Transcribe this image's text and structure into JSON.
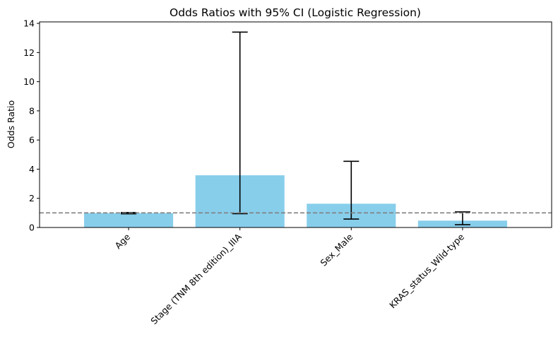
{
  "chart_data": {
    "type": "bar",
    "title": "Odds Ratios with 95% CI (Logistic Regression)",
    "xlabel": "",
    "ylabel": "Odds Ratio",
    "categories": [
      "Age",
      "Stage (TNM 8th edition)_IIIA",
      "Sex_Male",
      "KRAS_status_Wild-type"
    ],
    "values": [
      0.99,
      3.58,
      1.63,
      0.47
    ],
    "ci_lower": [
      0.94,
      0.95,
      0.58,
      0.19
    ],
    "ci_upper": [
      1.03,
      13.4,
      4.54,
      1.07
    ],
    "reference_line": 1.0,
    "ylim": [
      0,
      14.1
    ],
    "yticks": [
      "0",
      "2",
      "4",
      "6",
      "8",
      "10",
      "12",
      "14"
    ],
    "bar_color": "#87ceeb",
    "error_color": "#000000",
    "reference_line_color": "#808080",
    "grid": false,
    "legend": "none"
  }
}
